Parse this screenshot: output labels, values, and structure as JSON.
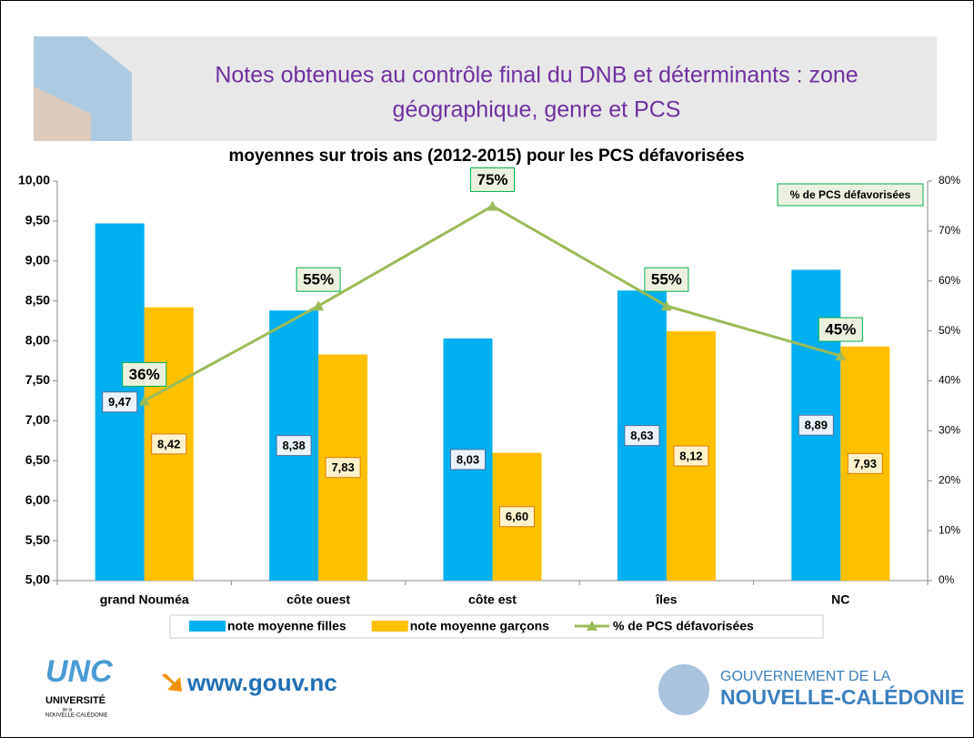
{
  "header": {
    "title_lines": [
      "Notes obtenues au contrôle final du DNB et déterminants : zone",
      "géographique, genre et PCS"
    ]
  },
  "chart_data": {
    "type": "bar",
    "title": "moyennes sur trois ans (2012-2015) pour les PCS défavorisées",
    "categories": [
      "grand Nouméa",
      "côte ouest",
      "côte est",
      "îles",
      "NC"
    ],
    "series": [
      {
        "name": "note moyenne filles",
        "color": "#00b0f0",
        "values": [
          9.47,
          8.38,
          8.03,
          8.63,
          8.89
        ],
        "value_labels": [
          "9,47",
          "8,38",
          "8,03",
          "8,63",
          "8,89"
        ]
      },
      {
        "name": "note moyenne garçons",
        "color": "#ffc000",
        "values": [
          8.42,
          7.83,
          6.6,
          8.12,
          7.93
        ],
        "value_labels": [
          "8,42",
          "7,83",
          "6,60",
          "8,12",
          "7,93"
        ]
      },
      {
        "name": "% de PCS défavorisées",
        "type": "line",
        "axis": "y2",
        "color": "#9bbb59",
        "values": [
          36,
          55,
          75,
          55,
          45
        ],
        "value_labels": [
          "36%",
          "55%",
          "75%",
          "55%",
          "45%"
        ]
      }
    ],
    "y2_label": "% de PCS défavorisées",
    "ylim": [
      5,
      10
    ],
    "yticks": [
      {
        "value": 5,
        "label": "5,00"
      },
      {
        "value": 5.5,
        "label": "5,50"
      },
      {
        "value": 6,
        "label": "6,00"
      },
      {
        "value": 6.5,
        "label": "6,50"
      },
      {
        "value": 7,
        "label": "7,00"
      },
      {
        "value": 7.5,
        "label": "7,50"
      },
      {
        "value": 8,
        "label": "8,00"
      },
      {
        "value": 8.5,
        "label": "8,50"
      },
      {
        "value": 9,
        "label": "9,00"
      },
      {
        "value": 9.5,
        "label": "9,50"
      },
      {
        "value": 10,
        "label": "10,00"
      }
    ],
    "y2lim": [
      0,
      80
    ],
    "y2ticks": [
      {
        "value": 0,
        "label": "0%"
      },
      {
        "value": 10,
        "label": "10%"
      },
      {
        "value": 20,
        "label": "20%"
      },
      {
        "value": 30,
        "label": "30%"
      },
      {
        "value": 40,
        "label": "40%"
      },
      {
        "value": 50,
        "label": "50%"
      },
      {
        "value": 60,
        "label": "60%"
      },
      {
        "value": 70,
        "label": "70%"
      },
      {
        "value": 80,
        "label": "80%"
      }
    ],
    "grid": false
  },
  "footer": {
    "unc": "UNC",
    "university": "UNIVERSITÉ",
    "university_of": "de la",
    "university_place": "NOUVELLE-CALÉDONIE",
    "website": "www.gouv.nc",
    "gov_line1": "GOUVERNEMENT DE LA",
    "gov_line2": "NOUVELLE-CALÉDONIE"
  }
}
